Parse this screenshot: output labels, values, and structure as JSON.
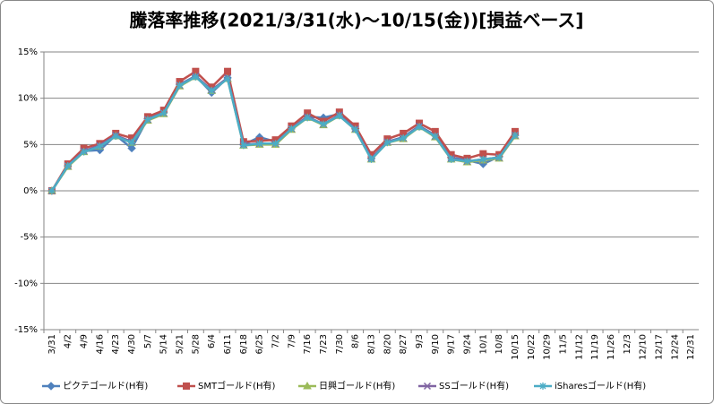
{
  "chart_data": {
    "type": "line",
    "title": "騰落率推移(2021/3/31(水)～10/15(金))[損益ベース]",
    "categories": [
      "3/31",
      "4/2",
      "4/9",
      "4/16",
      "4/23",
      "4/30",
      "5/7",
      "5/14",
      "5/21",
      "5/28",
      "6/4",
      "6/11",
      "6/18",
      "6/25",
      "7/2",
      "7/9",
      "7/16",
      "7/23",
      "7/30",
      "8/6",
      "8/13",
      "8/20",
      "8/27",
      "9/3",
      "9/10",
      "9/17",
      "9/24",
      "10/1",
      "10/8",
      "10/15",
      "10/22",
      "10/29",
      "11/5",
      "11/12",
      "11/19",
      "11/26",
      "12/3",
      "12/10",
      "12/17",
      "12/24",
      "12/31"
    ],
    "series": [
      {
        "name": "ピクテゴールド(H有)",
        "color": "#4F81BD",
        "marker": "diamond",
        "values": [
          0,
          2.7,
          4.3,
          4.4,
          6.0,
          4.6,
          7.8,
          8.5,
          11.5,
          12.4,
          10.6,
          12.2,
          5.0,
          5.8,
          5.3,
          6.8,
          8.0,
          7.9,
          8.3,
          6.7,
          3.5,
          5.3,
          5.8,
          7.0,
          6.0,
          3.6,
          3.3,
          2.9,
          3.7,
          6.0,
          null,
          null,
          null,
          null,
          null,
          null,
          null,
          null,
          null,
          null,
          null
        ]
      },
      {
        "name": "SMTゴールド(H有)",
        "color": "#C0504D",
        "marker": "square",
        "values": [
          0,
          2.9,
          4.6,
          5.1,
          6.2,
          5.7,
          8.0,
          8.7,
          11.8,
          12.9,
          11.2,
          12.9,
          5.3,
          5.4,
          5.5,
          7.0,
          8.4,
          7.5,
          8.5,
          7.0,
          3.9,
          5.6,
          6.2,
          7.3,
          6.4,
          3.9,
          3.5,
          4.0,
          3.9,
          6.4,
          null,
          null,
          null,
          null,
          null,
          null,
          null,
          null,
          null,
          null,
          null
        ]
      },
      {
        "name": "日興ゴールド(H有)",
        "color": "#9BBB59",
        "marker": "triangle",
        "values": [
          0,
          2.6,
          4.2,
          4.8,
          5.9,
          5.2,
          7.6,
          8.3,
          11.3,
          12.3,
          10.8,
          12.1,
          4.9,
          5.0,
          5.0,
          6.6,
          7.9,
          7.1,
          8.1,
          6.6,
          3.4,
          5.2,
          5.6,
          6.9,
          5.8,
          3.4,
          3.1,
          3.3,
          3.5,
          5.9,
          null,
          null,
          null,
          null,
          null,
          null,
          null,
          null,
          null,
          null,
          null
        ]
      },
      {
        "name": "SSゴールド(H有)",
        "color": "#8064A2",
        "marker": "x",
        "values": [
          0,
          2.7,
          4.3,
          4.9,
          6.0,
          5.3,
          7.7,
          8.4,
          11.4,
          12.4,
          10.9,
          12.2,
          5.0,
          5.1,
          5.1,
          6.7,
          8.0,
          7.2,
          8.2,
          6.7,
          3.5,
          5.3,
          5.7,
          7.0,
          5.9,
          3.5,
          3.2,
          3.4,
          3.6,
          6.0,
          null,
          null,
          null,
          null,
          null,
          null,
          null,
          null,
          null,
          null,
          null
        ]
      },
      {
        "name": "iSharesゴールド(H有)",
        "color": "#4BACC6",
        "marker": "star",
        "values": [
          0,
          2.7,
          4.2,
          4.8,
          5.9,
          5.2,
          7.7,
          8.4,
          11.4,
          12.3,
          10.8,
          12.1,
          4.9,
          5.1,
          5.1,
          6.7,
          7.9,
          7.2,
          8.1,
          6.6,
          3.4,
          5.2,
          5.7,
          6.9,
          5.9,
          3.4,
          3.2,
          3.4,
          3.6,
          6.0,
          null,
          null,
          null,
          null,
          null,
          null,
          null,
          null,
          null,
          null,
          null
        ]
      }
    ],
    "ylim": [
      -15,
      15
    ],
    "yticks": [
      {
        "value": -15,
        "label": "-15%"
      },
      {
        "value": -10,
        "label": "-10%"
      },
      {
        "value": -5,
        "label": "-5%"
      },
      {
        "value": 0,
        "label": "0%"
      },
      {
        "value": 5,
        "label": "5%"
      },
      {
        "value": 10,
        "label": "10%"
      },
      {
        "value": 15,
        "label": "15%"
      }
    ],
    "grid": true,
    "legend": "bottom"
  }
}
